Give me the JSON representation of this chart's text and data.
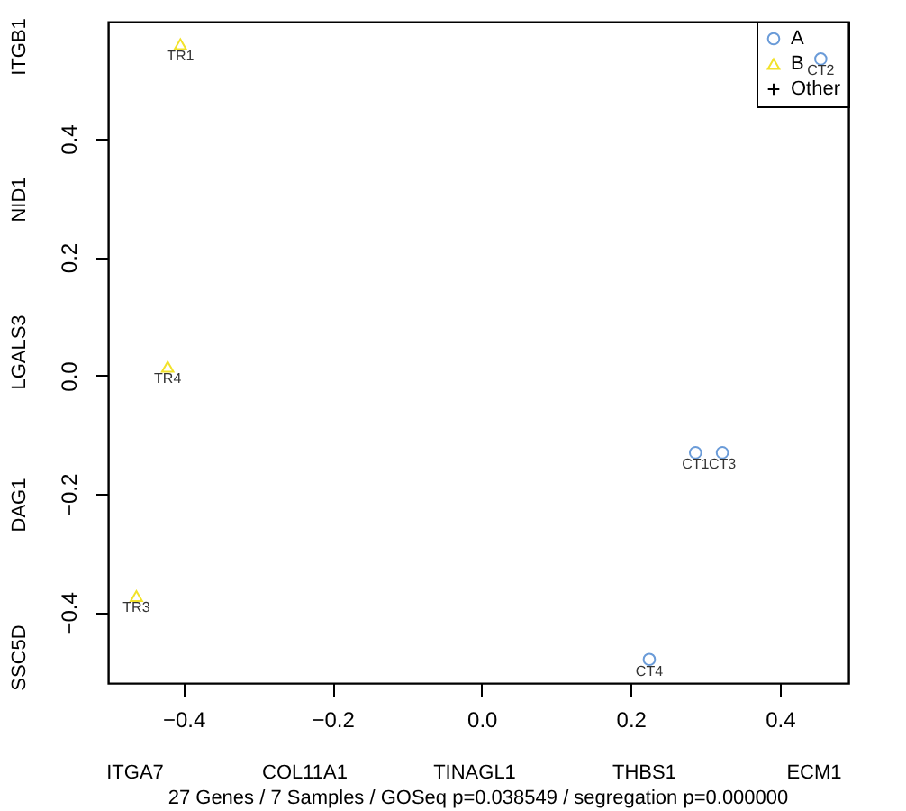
{
  "chart_data": {
    "type": "scatter",
    "xlim": [
      -0.501,
      0.492
    ],
    "ylim": [
      -0.519,
      0.598
    ],
    "xticks": [
      -0.4,
      -0.2,
      {
        "value": 0,
        "label": "0.0"
      },
      0.2,
      0.4
    ],
    "yticks": [
      -0.4,
      -0.2,
      {
        "value": 0,
        "label": "0.0"
      },
      0.2,
      0.4
    ],
    "grid": false,
    "legend": "top right",
    "series": [
      {
        "name": "A",
        "color": "#6a9bd8",
        "marker": "circle",
        "x": [
          0.287,
          0.455,
          0.323,
          0.225
        ],
        "values": [
          -0.13,
          0.535,
          -0.13,
          -0.479
        ],
        "value_labels": [
          "CT1",
          "CT2",
          "CT3",
          "CT4"
        ]
      },
      {
        "name": "B",
        "color": "#f2e22a",
        "marker": "triangle",
        "x": [
          -0.404,
          -0.463,
          -0.421
        ],
        "values": [
          0.56,
          -0.372,
          0.015
        ],
        "value_labels": [
          "TR1",
          "TR3",
          "TR4"
        ]
      },
      {
        "name": "Other",
        "color": "#000000",
        "marker": "cross"
      }
    ],
    "annotations": [
      "ITGA7",
      "COL11A1",
      "TINAGL1",
      "THBS1",
      "ECM1",
      "ITGB1",
      "NID1",
      "LGALS3",
      "DAG1",
      "SSC5D",
      "27 Genes / 7 Samples / GOSeq p=0.038549 / segregation p=0.000000"
    ]
  }
}
